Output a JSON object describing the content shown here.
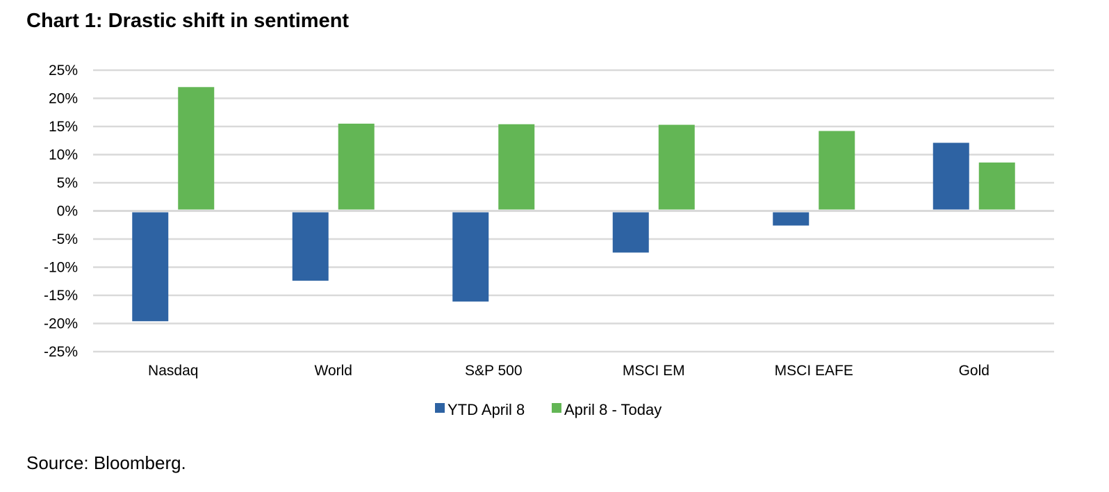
{
  "title": "Chart 1: Drastic shift in sentiment",
  "source": "Source: Bloomberg.",
  "chart_data": {
    "type": "bar",
    "title": "Chart 1: Drastic shift in sentiment",
    "xlabel": "",
    "ylabel": "",
    "ylim": [
      -25,
      25
    ],
    "y_ticks": [
      25,
      20,
      15,
      10,
      5,
      0,
      -5,
      -10,
      -15,
      -20,
      -25
    ],
    "y_tick_labels": [
      "25%",
      "20%",
      "15%",
      "10%",
      "5%",
      "0%",
      "-5%",
      "-10%",
      "-15%",
      "-20%",
      "-25%"
    ],
    "grid": true,
    "legend_position": "bottom",
    "categories": [
      "Nasdaq",
      "World",
      "S&P 500",
      "MSCI EM",
      "MSCI EAFE",
      "Gold"
    ],
    "series": [
      {
        "name": "YTD April 8",
        "color": "#2E63A3",
        "values": [
          -19.6,
          -12.4,
          -16.1,
          -7.4,
          -2.6,
          12.1
        ]
      },
      {
        "name": "April 8 - Today",
        "color": "#63B655",
        "values": [
          22.0,
          15.5,
          15.4,
          15.3,
          14.2,
          8.6
        ]
      }
    ]
  }
}
